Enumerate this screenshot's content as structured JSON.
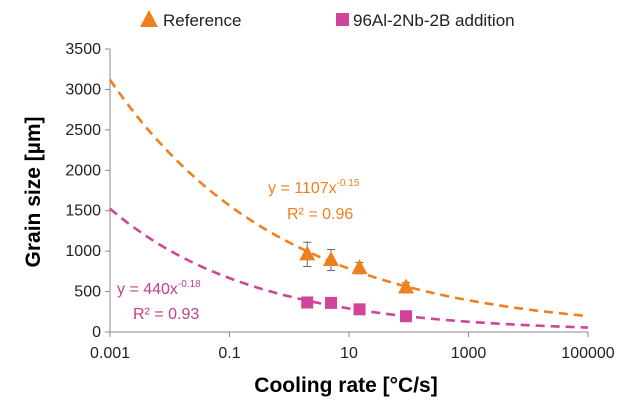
{
  "chart_data": {
    "type": "scatter",
    "xlabel": "Cooling rate [°C/s]",
    "ylabel": "Grain size [µm]",
    "xscale": "log",
    "xlim": [
      0.001,
      100000
    ],
    "ylim": [
      0,
      3500
    ],
    "x_tick_labels": [
      "0.001",
      "0.1",
      "10",
      "1000",
      "100000"
    ],
    "x_tick_values": [
      0.001,
      0.1,
      10,
      1000,
      100000
    ],
    "y_tick_labels": [
      "0",
      "500",
      "1000",
      "1500",
      "2000",
      "2500",
      "3000",
      "3500"
    ],
    "y_tick_values": [
      0,
      500,
      1000,
      1500,
      2000,
      2500,
      3000,
      3500
    ],
    "grid": false,
    "legend_position": "top",
    "series": [
      {
        "name": "Reference",
        "marker": "triangle",
        "color": "#F07F1E",
        "x": [
          2,
          5,
          15,
          90
        ],
        "y": [
          960,
          890,
          790,
          550
        ],
        "error": [
          150,
          130,
          70,
          60
        ],
        "fit": {
          "a": 1107,
          "b": -0.15,
          "line": "dashed"
        },
        "equation_coef": "y = 1107x",
        "equation_exp": "-0.15",
        "r2_label": "R² = 0.96"
      },
      {
        "name": "96Al-2Nb-2B addition",
        "marker": "square",
        "color": "#D0449A",
        "x": [
          2,
          5,
          15,
          90
        ],
        "y": [
          365,
          360,
          280,
          195
        ],
        "fit": {
          "a": 440,
          "b": -0.18,
          "line": "dashed"
        },
        "equation_coef": "y = 440x",
        "equation_exp": "-0.18",
        "r2_label": "R² = 0.93"
      }
    ]
  }
}
